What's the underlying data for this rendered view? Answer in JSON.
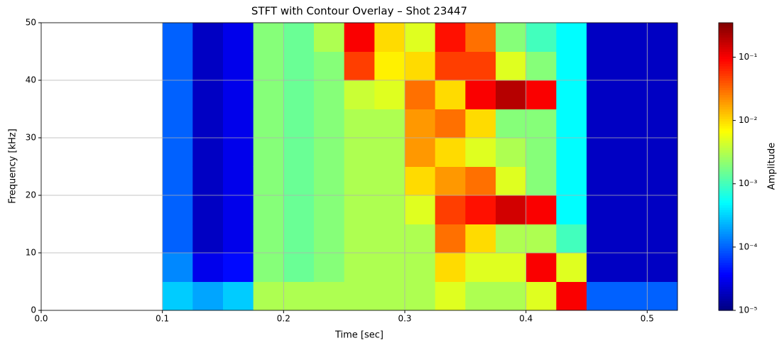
{
  "chart_data": {
    "type": "heatmap",
    "title": "STFT with Contour Overlay – Shot 23447",
    "xlabel": "Time [sec]",
    "ylabel": "Frequency [kHz]",
    "x_edges": [
      0.1,
      0.125,
      0.15,
      0.175,
      0.2,
      0.225,
      0.25,
      0.275,
      0.3,
      0.325,
      0.35,
      0.375,
      0.4,
      0.425,
      0.45,
      0.475,
      0.5,
      0.525
    ],
    "y_edges": [
      0,
      5,
      10,
      15,
      20,
      25,
      30,
      35,
      40,
      45,
      50
    ],
    "values": [
      [
        0.0003,
        0.00015,
        0.0001,
        0.0001,
        0.0001,
        0.0001,
        0.0001,
        0.0001,
        0.0001,
        0.0001
      ],
      [
        0.0002,
        3e-05,
        2e-05,
        2e-05,
        2e-05,
        2e-05,
        2e-05,
        2e-05,
        2e-05,
        2e-05
      ],
      [
        0.0003,
        4e-05,
        3e-05,
        3e-05,
        3e-05,
        3e-05,
        3e-05,
        3e-05,
        3e-05,
        3e-05
      ],
      [
        0.003,
        0.002,
        0.002,
        0.002,
        0.002,
        0.002,
        0.002,
        0.002,
        0.002,
        0.002
      ],
      [
        0.003,
        0.0015,
        0.0015,
        0.0015,
        0.0015,
        0.0015,
        0.0015,
        0.0015,
        0.0015,
        0.0015
      ],
      [
        0.003,
        0.002,
        0.002,
        0.002,
        0.002,
        0.002,
        0.002,
        0.002,
        0.002,
        0.003
      ],
      [
        0.003,
        0.003,
        0.003,
        0.003,
        0.003,
        0.003,
        0.003,
        0.004,
        0.05,
        0.1
      ],
      [
        0.003,
        0.003,
        0.003,
        0.003,
        0.003,
        0.003,
        0.003,
        0.005,
        0.008,
        0.01
      ],
      [
        0.003,
        0.003,
        0.003,
        0.005,
        0.01,
        0.02,
        0.02,
        0.03,
        0.01,
        0.005
      ],
      [
        0.005,
        0.01,
        0.03,
        0.05,
        0.02,
        0.01,
        0.03,
        0.01,
        0.05,
        0.08
      ],
      [
        0.003,
        0.005,
        0.01,
        0.08,
        0.03,
        0.005,
        0.01,
        0.1,
        0.05,
        0.03
      ],
      [
        0.003,
        0.005,
        0.003,
        0.15,
        0.005,
        0.003,
        0.002,
        0.2,
        0.005,
        0.002
      ],
      [
        0.005,
        0.1,
        0.003,
        0.1,
        0.002,
        0.002,
        0.002,
        0.1,
        0.002,
        0.001
      ],
      [
        0.1,
        0.005,
        0.001,
        0.0005,
        0.0005,
        0.0005,
        0.0005,
        0.0005,
        0.0005,
        0.0005
      ],
      [
        0.0001,
        2e-05,
        2e-05,
        2e-05,
        2e-05,
        2e-05,
        2e-05,
        2e-05,
        2e-05,
        2e-05
      ],
      [
        0.0001,
        2e-05,
        2e-05,
        2e-05,
        2e-05,
        2e-05,
        2e-05,
        2e-05,
        2e-05,
        2e-05
      ],
      [
        0.0001,
        2e-05,
        2e-05,
        2e-05,
        2e-05,
        2e-05,
        2e-05,
        2e-05,
        2e-05,
        2e-05
      ]
    ],
    "xlim": [
      0,
      0.525
    ],
    "ylim": [
      0,
      50
    ],
    "xticks": [
      {
        "value": 0,
        "label": "0.0"
      },
      0.1,
      0.2,
      0.3,
      0.4,
      0.5
    ],
    "yticks": [
      0,
      10,
      20,
      30,
      40,
      50
    ],
    "grid": true,
    "colormap": "jet",
    "colorbar": {
      "label": "Amplitude",
      "scale": "log",
      "clim": [
        1e-05,
        0.35
      ],
      "ticks": [
        {
          "value": 1e-05,
          "label": "10⁻⁵"
        },
        {
          "value": 0.0001,
          "label": "10⁻⁴"
        },
        {
          "value": 0.001,
          "label": "10⁻³"
        },
        {
          "value": 0.01,
          "label": "10⁻²"
        },
        {
          "value": 0.1,
          "label": "10⁻¹"
        }
      ]
    }
  }
}
